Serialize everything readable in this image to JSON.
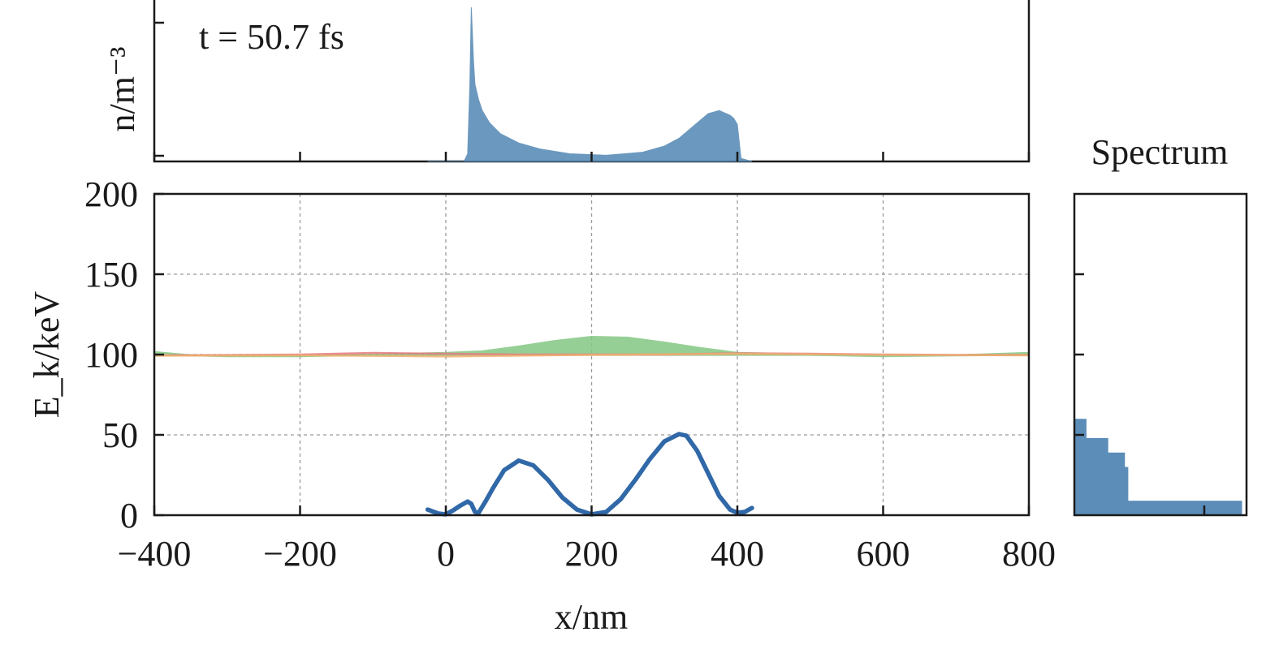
{
  "chart_data": [
    {
      "type": "area",
      "panel": "density",
      "annotation": "t = 50.7 fs",
      "ylabel": "n/m⁻³",
      "xlim": [
        -400,
        800
      ],
      "x_ticks": [
        -400,
        -200,
        0,
        200,
        400,
        600,
        800
      ],
      "grid": false,
      "color": "#5b8db8",
      "series": [
        {
          "x": [
            -25,
            25,
            30,
            33,
            35,
            38,
            40,
            45,
            50,
            60,
            75,
            100,
            130,
            170,
            220,
            270,
            300,
            320,
            340,
            360,
            375,
            390,
            395,
            400,
            405,
            420
          ],
          "y": [
            0.0,
            0.0,
            0.05,
            0.5,
            1.0,
            0.65,
            0.5,
            0.4,
            0.33,
            0.25,
            0.18,
            0.12,
            0.08,
            0.05,
            0.04,
            0.06,
            0.1,
            0.15,
            0.23,
            0.31,
            0.33,
            0.3,
            0.28,
            0.24,
            0.02,
            0.0
          ]
        }
      ]
    },
    {
      "type": "line",
      "panel": "energy",
      "xlabel": "x/nm",
      "ylabel": "E_k/keV",
      "xlim": [
        -400,
        800
      ],
      "ylim": [
        0,
        200
      ],
      "x_ticks": [
        -400,
        -200,
        0,
        200,
        400,
        600,
        800
      ],
      "x_tick_labels": [
        "−400",
        "−200",
        "0",
        "200",
        "400",
        "600",
        "800"
      ],
      "y_ticks": [
        0,
        50,
        100,
        150,
        200
      ],
      "y_tick_labels": [
        "0",
        "50",
        "100",
        "150",
        "200"
      ],
      "grid": true,
      "series": [
        {
          "color": "#84c782",
          "style": "band",
          "x": [
            -400,
            -350,
            -300,
            -250,
            -200,
            -100,
            0,
            50,
            100,
            150,
            200,
            250,
            300,
            350,
            400,
            500,
            600,
            700,
            800
          ],
          "y": [
            101.5,
            99.5,
            99,
            99,
            99,
            100,
            101,
            102,
            105,
            108.5,
            111,
            110.5,
            107.5,
            104,
            101,
            100,
            99,
            99.5,
            101
          ]
        },
        {
          "color": "#e87a80",
          "style": "band",
          "x": [
            -400,
            -300,
            -200,
            -100,
            0,
            100,
            200,
            300,
            400,
            500,
            600,
            700,
            800
          ],
          "y": [
            99.5,
            99.7,
            100,
            101,
            100.5,
            100,
            100,
            100,
            100.8,
            100.5,
            100,
            99.8,
            99.8
          ]
        },
        {
          "color": "#f0b070",
          "style": "band",
          "x": [
            -400,
            -200,
            0,
            200,
            400,
            600,
            800
          ],
          "y": [
            99.3,
            99.5,
            98.8,
            99.8,
            100.5,
            99.8,
            99.5
          ]
        },
        {
          "color": "#3068a8",
          "style": "thick",
          "x": [
            -25,
            -10,
            0,
            10,
            20,
            30,
            35,
            40,
            45,
            55,
            65,
            80,
            100,
            120,
            140,
            160,
            180,
            200,
            220,
            240,
            260,
            280,
            300,
            320,
            330,
            345,
            360,
            375,
            390,
            400,
            410,
            420
          ],
          "y": [
            3.5,
            1,
            0.5,
            3,
            6,
            8.5,
            7,
            2,
            1.5,
            9,
            17,
            28,
            34,
            31,
            22,
            11,
            3.5,
            0.5,
            2,
            10,
            22,
            35,
            46,
            50.5,
            49.5,
            40,
            26,
            12,
            3.5,
            1.5,
            2,
            4.5
          ]
        }
      ]
    },
    {
      "type": "bar",
      "panel": "spectrum",
      "title": "Spectrum",
      "ylim": [
        0,
        200
      ],
      "y_ticks": [
        50,
        100,
        150
      ],
      "grid": false,
      "color": "#5b8db8",
      "bins": [
        {
          "from": 0.0,
          "to": 0.07,
          "count": 60
        },
        {
          "from": 0.07,
          "to": 0.2,
          "count": 48
        },
        {
          "from": 0.2,
          "to": 0.3,
          "count": 39
        },
        {
          "from": 0.3,
          "to": 0.32,
          "count": 30
        },
        {
          "from": 0.32,
          "to": 1.0,
          "count": 9
        }
      ]
    }
  ]
}
